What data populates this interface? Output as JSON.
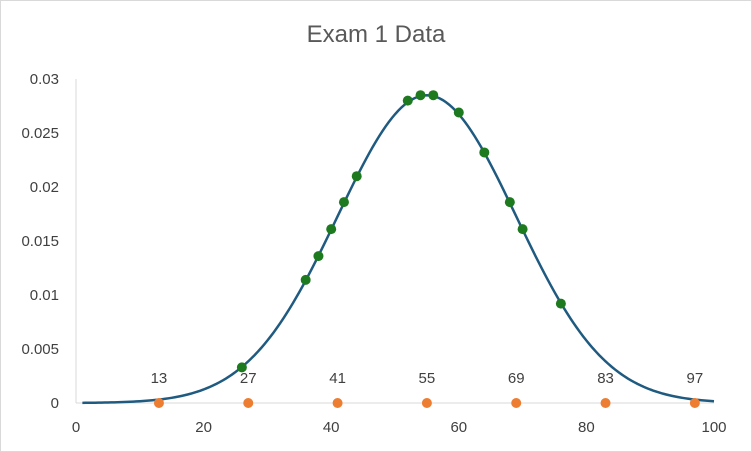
{
  "chart_data": {
    "type": "scatter",
    "title": "Exam 1 Data",
    "xlabel": "",
    "ylabel": "",
    "xlim": [
      0,
      100
    ],
    "ylim": [
      0,
      0.03
    ],
    "x_ticks": [
      0,
      20,
      40,
      60,
      80,
      100
    ],
    "y_ticks": [
      0,
      0.005,
      0.01,
      0.015,
      0.02,
      0.025,
      0.03
    ],
    "y_tick_labels": [
      "0",
      "0.005",
      "0.01",
      "0.015",
      "0.02",
      "0.025",
      "0.03"
    ],
    "grid": false,
    "legend": "none",
    "curve": {
      "kind": "normal-density",
      "mean": 55,
      "sd": 14,
      "x_range": [
        1,
        100
      ],
      "color": "#1f5a80"
    },
    "series": [
      {
        "color": "#1e7a1e",
        "points": [
          {
            "x": 26,
            "y": 0.0033
          },
          {
            "x": 36,
            "y": 0.0114
          },
          {
            "x": 38,
            "y": 0.0136
          },
          {
            "x": 40,
            "y": 0.0161
          },
          {
            "x": 42,
            "y": 0.0186
          },
          {
            "x": 44,
            "y": 0.021
          },
          {
            "x": 52,
            "y": 0.028
          },
          {
            "x": 54,
            "y": 0.0285
          },
          {
            "x": 56,
            "y": 0.0285
          },
          {
            "x": 60,
            "y": 0.0269
          },
          {
            "x": 64,
            "y": 0.0232
          },
          {
            "x": 68,
            "y": 0.0186
          },
          {
            "x": 70,
            "y": 0.0161
          },
          {
            "x": 76,
            "y": 0.0092
          }
        ]
      },
      {
        "color": "#ed7d31",
        "points": [
          {
            "x": 13,
            "y": 0,
            "label": "13"
          },
          {
            "x": 27,
            "y": 0,
            "label": "27"
          },
          {
            "x": 41,
            "y": 0,
            "label": "41"
          },
          {
            "x": 55,
            "y": 0,
            "label": "55"
          },
          {
            "x": 69,
            "y": 0,
            "label": "69"
          },
          {
            "x": 83,
            "y": 0,
            "label": "83"
          },
          {
            "x": 97,
            "y": 0,
            "label": "97"
          }
        ]
      }
    ]
  }
}
